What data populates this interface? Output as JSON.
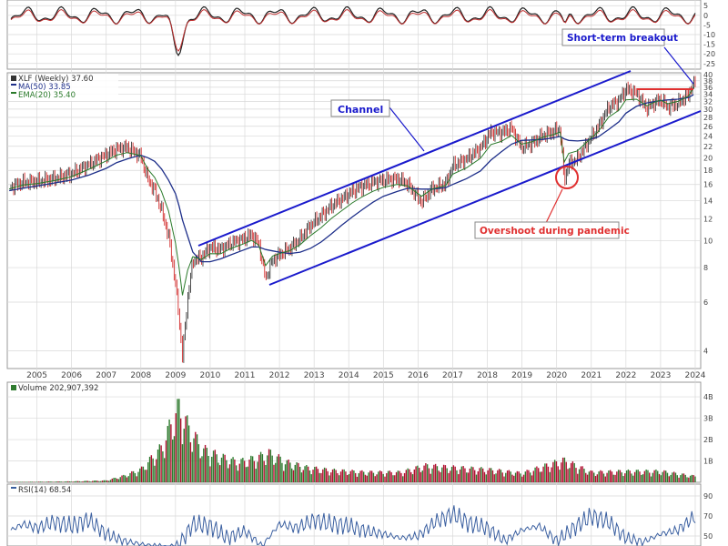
{
  "chart_data": [
    {
      "type": "line",
      "panel": "macd-histogram",
      "y_ticks": [
        "5",
        "0",
        "-5",
        "-10",
        "-15",
        "-20",
        "-25"
      ],
      "ylim": [
        -27,
        7
      ],
      "grid": true
    },
    {
      "type": "candlestick",
      "panel": "price",
      "y_scale": "log",
      "ylim": [
        3.5,
        40
      ],
      "legend": [
        {
          "label": "XLF (Weekly) 37.60",
          "color": "#333333"
        },
        {
          "label": "MA(50) 33.85",
          "color": "#1e2f8a"
        },
        {
          "label": "EMA(20) 35.40",
          "color": "#2a7a2a"
        }
      ],
      "legend_position": "top-left",
      "y_ticks": [
        "40",
        "38",
        "36",
        "34",
        "32",
        "30",
        "28",
        "26",
        "24",
        "22",
        "20",
        "18",
        "16",
        "14",
        "12",
        "10",
        "8",
        "6",
        "4"
      ],
      "x_ticks": [
        "2005",
        "2006",
        "2007",
        "2008",
        "2009",
        "2010",
        "2011",
        "2012",
        "2013",
        "2014",
        "2015",
        "2016",
        "2017",
        "2018",
        "2019",
        "2020",
        "2021",
        "2022",
        "2023",
        "2024"
      ],
      "x": [
        2004.2,
        2004.6,
        2005,
        2005.5,
        2006,
        2006.5,
        2007,
        2007.3,
        2007.6,
        2007.9,
        2008,
        2008.2,
        2008.4,
        2008.6,
        2008.8,
        2009,
        2009.1,
        2009.2,
        2009.35,
        2009.5,
        2009.75,
        2010,
        2010.3,
        2010.6,
        2010.9,
        2011.2,
        2011.4,
        2011.6,
        2011.8,
        2012,
        2012.3,
        2012.6,
        2012.9,
        2013.2,
        2013.5,
        2013.8,
        2014.1,
        2014.4,
        2014.7,
        2015,
        2015.4,
        2015.7,
        2016.1,
        2016.4,
        2016.8,
        2017,
        2017.4,
        2017.8,
        2018.1,
        2018.4,
        2018.7,
        2018.98,
        2019.3,
        2019.6,
        2019.9,
        2020.1,
        2020.22,
        2020.35,
        2020.6,
        2020.9,
        2021.2,
        2021.5,
        2021.8,
        2022.0,
        2022.3,
        2022.6,
        2022.8,
        2023.0,
        2023.2,
        2023.5,
        2023.8,
        2023.95
      ],
      "close": [
        15.6,
        16.3,
        16.4,
        16.8,
        17.5,
        18.9,
        20.5,
        21.5,
        21.8,
        20.7,
        20.2,
        16.8,
        15.2,
        12.9,
        10.4,
        7.0,
        5.3,
        3.8,
        6.2,
        8.5,
        8.7,
        9.5,
        9.3,
        9.8,
        10.1,
        10.5,
        9.8,
        7.3,
        8.5,
        8.9,
        9.4,
        10.2,
        11.4,
        12.3,
        13.4,
        14.2,
        15.1,
        15.8,
        16.3,
        16.6,
        16.8,
        16.1,
        13.8,
        15.4,
        16.1,
        18.7,
        19.8,
        21.7,
        24.8,
        24.6,
        25.6,
        21.8,
        22.6,
        24.1,
        24.8,
        25.5,
        16.5,
        19.0,
        19.8,
        22.8,
        25.8,
        30.5,
        32.2,
        35.5,
        34.2,
        30.2,
        31.5,
        32.5,
        30.5,
        31.5,
        33.8,
        37.6
      ],
      "ma50": [
        15.2,
        15.5,
        15.8,
        16.2,
        16.6,
        17.3,
        18.3,
        19.2,
        19.8,
        20.3,
        20.4,
        20.0,
        19.4,
        18.2,
        16.6,
        14.8,
        13.4,
        11.9,
        10.4,
        9.1,
        8.4,
        8.4,
        8.6,
        8.9,
        9.2,
        9.5,
        9.5,
        9.3,
        9.2,
        9.1,
        9.0,
        9.1,
        9.4,
        9.9,
        10.6,
        11.4,
        12.2,
        13.0,
        13.8,
        14.5,
        15.1,
        15.5,
        15.4,
        15.4,
        15.6,
        16.0,
        16.8,
        17.9,
        19.6,
        21.0,
        22.4,
        23.1,
        23.2,
        23.3,
        23.6,
        23.9,
        23.4,
        23.1,
        23.0,
        23.2,
        23.8,
        25.3,
        27.0,
        29.0,
        30.7,
        31.6,
        31.9,
        32.2,
        32.4,
        32.6,
        33.0,
        33.85
      ]
    },
    {
      "type": "bar",
      "panel": "volume",
      "legend": "Volume 202,907,392",
      "y_ticks": [
        "4B",
        "3B",
        "2B",
        "1B"
      ],
      "ylim": [
        0,
        4.6
      ],
      "x": [
        2005,
        2006,
        2007,
        2007.5,
        2008,
        2008.3,
        2008.6,
        2008.85,
        2009.1,
        2009.4,
        2009.8,
        2010.3,
        2010.8,
        2011.3,
        2011.7,
        2012.2,
        2012.8,
        2013.5,
        2014.5,
        2015.5,
        2016.2,
        2017,
        2018,
        2019,
        2020.2,
        2021,
        2022,
        2023,
        2023.9
      ],
      "values": [
        0.03,
        0.05,
        0.1,
        0.35,
        0.7,
        1.3,
        1.9,
        3.1,
        4.1,
        2.9,
        1.8,
        1.4,
        1.1,
        1.3,
        1.6,
        1.1,
        0.8,
        0.65,
        0.55,
        0.55,
        0.9,
        0.8,
        0.7,
        0.5,
        1.2,
        0.55,
        0.6,
        0.6,
        0.35
      ]
    },
    {
      "type": "line",
      "panel": "rsi",
      "legend": "RSI(14) 68.54",
      "y_ticks": [
        "90",
        "70",
        "50"
      ],
      "ylim": [
        40,
        100
      ],
      "x": [
        2004.2,
        2004.6,
        2005,
        2005.5,
        2006,
        2006.5,
        2007,
        2007.5,
        2008,
        2008.5,
        2009,
        2009.5,
        2010,
        2010.5,
        2011,
        2011.5,
        2012,
        2012.5,
        2013,
        2013.5,
        2014,
        2014.5,
        2015,
        2015.5,
        2016,
        2016.5,
        2017,
        2017.5,
        2018,
        2018.5,
        2019,
        2019.5,
        2020,
        2020.5,
        2021,
        2021.5,
        2022,
        2022.5,
        2023,
        2023.5,
        2023.95
      ],
      "values": [
        55,
        62,
        58,
        64,
        60,
        66,
        52,
        45,
        42,
        38,
        35,
        62,
        60,
        48,
        55,
        40,
        62,
        58,
        66,
        62,
        60,
        55,
        52,
        48,
        50,
        64,
        72,
        62,
        58,
        45,
        56,
        60,
        45,
        58,
        70,
        64,
        48,
        44,
        52,
        56,
        68.54
      ]
    }
  ],
  "annotations": {
    "channel": "Channel",
    "short_term_breakout": "Short-term breakout",
    "overshoot": "Overshoot during pandemic"
  },
  "colors": {
    "channel_line": "#1a1acc",
    "breakout_line": "#e03030",
    "up_candle": "#222222",
    "down_candle": "#cc1111",
    "ma50": "#1e2f8a",
    "ema20": "#2a7a2a",
    "volume_up": "#2e7a2e",
    "volume_down": "#b01030",
    "rsi_line": "#3a5fa0",
    "grid": "#d8d8d8"
  }
}
